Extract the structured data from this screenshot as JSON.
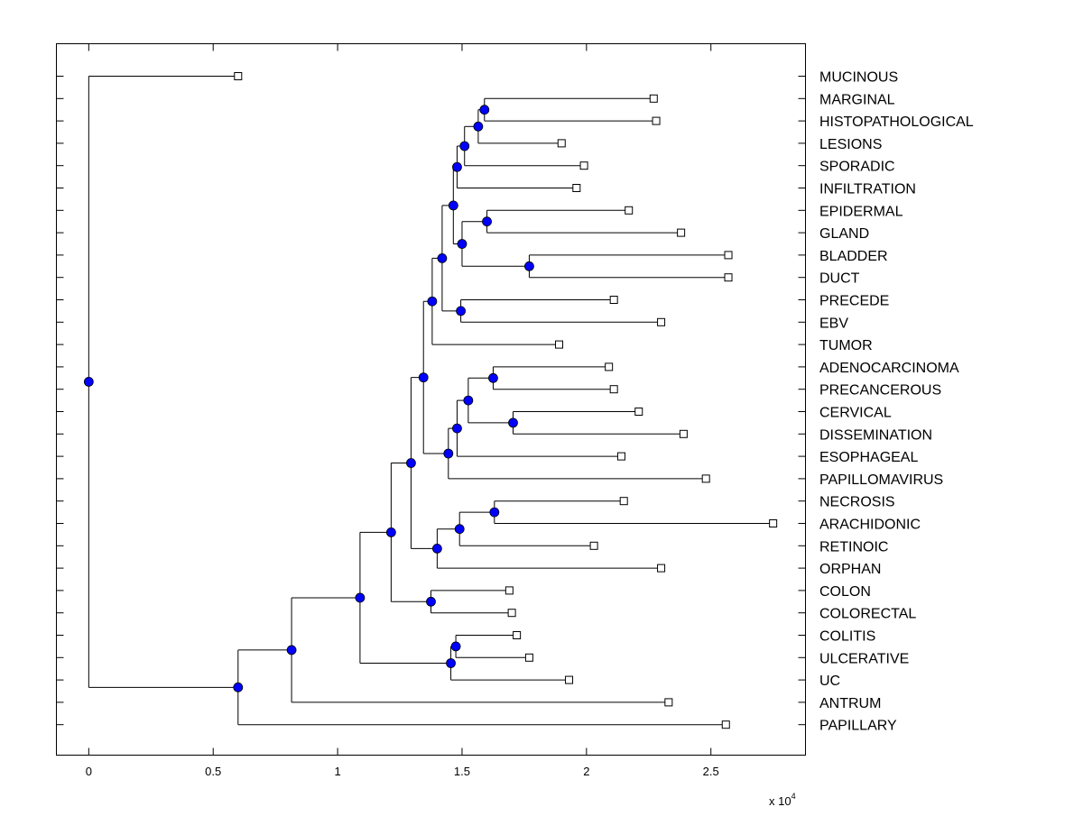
{
  "chart_data": {
    "type": "dendrogram",
    "orientation": "horizontal",
    "x_axis": {
      "ticks": [
        0,
        0.5,
        1,
        1.5,
        2,
        2.5
      ],
      "tick_labels": [
        "0",
        "0.5",
        "1",
        "1.5",
        "2",
        "2.5"
      ],
      "range": [
        -0.13,
        2.88
      ],
      "multiplier_label": "x 10",
      "multiplier_exponent": "4"
    },
    "leaves": [
      {
        "label": "MUCINOUS",
        "x": 0.6
      },
      {
        "label": "MARGINAL",
        "x": 2.27
      },
      {
        "label": "HISTOPATHOLOGICAL",
        "x": 2.28
      },
      {
        "label": "LESIONS",
        "x": 1.9
      },
      {
        "label": "SPORADIC",
        "x": 1.99
      },
      {
        "label": "INFILTRATION",
        "x": 1.96
      },
      {
        "label": "EPIDERMAL",
        "x": 2.17
      },
      {
        "label": "GLAND",
        "x": 2.38
      },
      {
        "label": "BLADDER",
        "x": 2.57
      },
      {
        "label": "DUCT",
        "x": 2.57
      },
      {
        "label": "PRECEDE",
        "x": 2.11
      },
      {
        "label": "EBV",
        "x": 2.3
      },
      {
        "label": "TUMOR",
        "x": 1.89
      },
      {
        "label": "ADENOCARCINOMA",
        "x": 2.09
      },
      {
        "label": "PRECANCEROUS",
        "x": 2.11
      },
      {
        "label": "CERVICAL",
        "x": 2.21
      },
      {
        "label": "DISSEMINATION",
        "x": 2.39
      },
      {
        "label": "ESOPHAGEAL",
        "x": 2.14
      },
      {
        "label": "PAPILLOMAVIRUS",
        "x": 2.48
      },
      {
        "label": "NECROSIS",
        "x": 2.15
      },
      {
        "label": "ARACHIDONIC",
        "x": 2.75
      },
      {
        "label": "RETINOIC",
        "x": 2.03
      },
      {
        "label": "ORPHAN",
        "x": 2.3
      },
      {
        "label": "COLON",
        "x": 1.69
      },
      {
        "label": "COLORECTAL",
        "x": 1.7
      },
      {
        "label": "COLITIS",
        "x": 1.72
      },
      {
        "label": "ULCERATIVE",
        "x": 1.77
      },
      {
        "label": "UC",
        "x": 1.93
      },
      {
        "label": "ANTRUM",
        "x": 2.33
      },
      {
        "label": "PAPILLARY",
        "x": 2.56
      }
    ],
    "nodes": [
      {
        "id": "n_mar_his",
        "x": 1.59,
        "children": [
          "L1",
          "L2"
        ]
      },
      {
        "id": "n_les",
        "x": 1.565,
        "children": [
          "n_mar_his",
          "L3"
        ]
      },
      {
        "id": "n_spo",
        "x": 1.51,
        "children": [
          "n_les",
          "L4"
        ]
      },
      {
        "id": "n_inf",
        "x": 1.48,
        "children": [
          "n_spo",
          "L5"
        ]
      },
      {
        "id": "n_epi_gla",
        "x": 1.6,
        "children": [
          "L6",
          "L7"
        ]
      },
      {
        "id": "n_bla_duc",
        "x": 1.77,
        "children": [
          "L8",
          "L9"
        ]
      },
      {
        "id": "n_egbd",
        "x": 1.5,
        "children": [
          "n_epi_gla",
          "n_bla_duc"
        ]
      },
      {
        "id": "n_top",
        "x": 1.465,
        "children": [
          "n_inf",
          "n_egbd"
        ]
      },
      {
        "id": "n_pre_ebv",
        "x": 1.495,
        "children": [
          "L10",
          "L11"
        ]
      },
      {
        "id": "n_top2",
        "x": 1.42,
        "children": [
          "n_top",
          "n_pre_ebv"
        ]
      },
      {
        "id": "n_tum",
        "x": 1.38,
        "children": [
          "n_top2",
          "L12"
        ]
      },
      {
        "id": "n_ade_pre",
        "x": 1.625,
        "children": [
          "L13",
          "L14"
        ]
      },
      {
        "id": "n_cer_dis",
        "x": 1.705,
        "children": [
          "L15",
          "L16"
        ]
      },
      {
        "id": "n_adpc",
        "x": 1.525,
        "children": [
          "n_ade_pre",
          "n_cer_dis"
        ]
      },
      {
        "id": "n_eso",
        "x": 1.48,
        "children": [
          "n_adpc",
          "L17"
        ]
      },
      {
        "id": "n_pap",
        "x": 1.445,
        "children": [
          "n_eso",
          "L18"
        ]
      },
      {
        "id": "n_tp",
        "x": 1.345,
        "children": [
          "n_tum",
          "n_pap"
        ]
      },
      {
        "id": "n_nec_ara",
        "x": 1.63,
        "children": [
          "L19",
          "L20"
        ]
      },
      {
        "id": "n_ret",
        "x": 1.49,
        "children": [
          "n_nec_ara",
          "L21"
        ]
      },
      {
        "id": "n_orp",
        "x": 1.4,
        "children": [
          "n_ret",
          "L22"
        ]
      },
      {
        "id": "n_big",
        "x": 1.295,
        "children": [
          "n_tp",
          "n_orp"
        ]
      },
      {
        "id": "n_col",
        "x": 1.375,
        "children": [
          "L23",
          "L24"
        ]
      },
      {
        "id": "n_big2",
        "x": 1.215,
        "children": [
          "n_big",
          "n_col"
        ]
      },
      {
        "id": "n_cit_ulc",
        "x": 1.475,
        "children": [
          "L25",
          "L26"
        ]
      },
      {
        "id": "n_uc",
        "x": 1.455,
        "children": [
          "n_cit_ulc",
          "L27"
        ]
      },
      {
        "id": "n_big3",
        "x": 1.09,
        "children": [
          "n_big2",
          "n_uc"
        ]
      },
      {
        "id": "n_ant",
        "x": 0.815,
        "children": [
          "n_big3",
          "L28"
        ]
      },
      {
        "id": "n_papl",
        "x": 0.6,
        "children": [
          "n_ant",
          "L29"
        ]
      },
      {
        "id": "n_root",
        "x": 0.0,
        "children": [
          "L0",
          "n_papl"
        ]
      }
    ]
  }
}
